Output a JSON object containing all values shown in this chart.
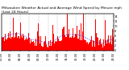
{
  "title": "Milwaukee Weather Actual and Average Wind Speed by Minute mph (Last 24 Hours)",
  "ylim": [
    0,
    15
  ],
  "n_points": 1440,
  "bar_color": "#FF0000",
  "line_color": "#0000FF",
  "background_color": "#FFFFFF",
  "plot_bg_color": "#FFFFFF",
  "grid_color": "#AAAAAA",
  "title_fontsize": 3.2,
  "tick_fontsize": 2.5,
  "seed": 42
}
